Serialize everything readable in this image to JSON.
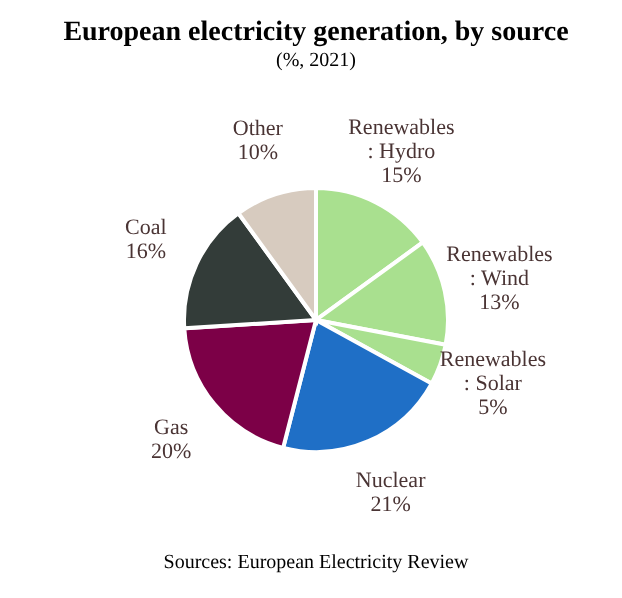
{
  "chart_data": {
    "type": "pie",
    "title": "European electricity generation, by source",
    "subtitle": "(%, 2021)",
    "categories": [
      "Renewables : Hydro",
      "Renewables : Wind",
      "Renewables : Solar",
      "Nuclear",
      "Gas",
      "Coal",
      "Other"
    ],
    "values": [
      15,
      13,
      5,
      21,
      20,
      16,
      10
    ],
    "colors": [
      "#a9e08f",
      "#a9e08f",
      "#a9e08f",
      "#1f6fc6",
      "#7c0047",
      "#333c39",
      "#d7cbbf"
    ],
    "value_labels": [
      "15%",
      "13%",
      "5%",
      "21%",
      "20%",
      "16%",
      "10%"
    ],
    "annotations": [
      "Sources: European Electricity Review"
    ]
  }
}
